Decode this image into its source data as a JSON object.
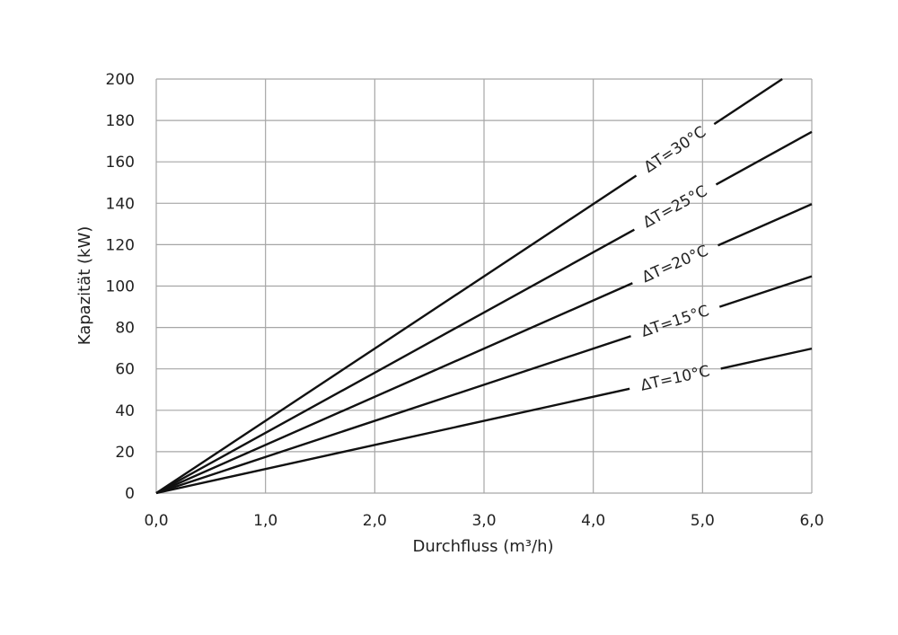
{
  "chart_data": {
    "type": "line",
    "title": "",
    "xlabel": "Durchfluss (m³/h)",
    "ylabel": "Kapazität (kW)",
    "xlim": [
      0,
      6
    ],
    "ylim": [
      0,
      200
    ],
    "x_ticks": [
      0,
      1,
      2,
      3,
      4,
      5,
      6
    ],
    "x_tick_labels": [
      "0,0",
      "1,0",
      "2,0",
      "3,0",
      "4,0",
      "5,0",
      "6,0"
    ],
    "y_ticks": [
      0,
      20,
      40,
      60,
      80,
      100,
      120,
      140,
      160,
      180,
      200
    ],
    "y_tick_labels": [
      "0",
      "20",
      "40",
      "60",
      "80",
      "100",
      "120",
      "140",
      "160",
      "180",
      "200"
    ],
    "grid": true,
    "legend": "none",
    "line_color": "#111111",
    "grid_color": "#a6a6a6",
    "series": [
      {
        "name": "ΔT=10°C",
        "x": [
          0,
          6
        ],
        "y": [
          0,
          69.8
        ],
        "label_at_x": 4.75
      },
      {
        "name": "ΔT=15°C",
        "x": [
          0,
          6
        ],
        "y": [
          0,
          104.7
        ],
        "label_at_x": 4.75
      },
      {
        "name": "ΔT=20°C",
        "x": [
          0,
          6
        ],
        "y": [
          0,
          139.6
        ],
        "label_at_x": 4.75
      },
      {
        "name": "ΔT=25°C",
        "x": [
          0,
          6
        ],
        "y": [
          0,
          174.5
        ],
        "label_at_x": 4.75
      },
      {
        "name": "ΔT=30°C",
        "x": [
          0,
          5.73
        ],
        "y": [
          0,
          200
        ],
        "label_at_x": 4.75
      }
    ]
  }
}
